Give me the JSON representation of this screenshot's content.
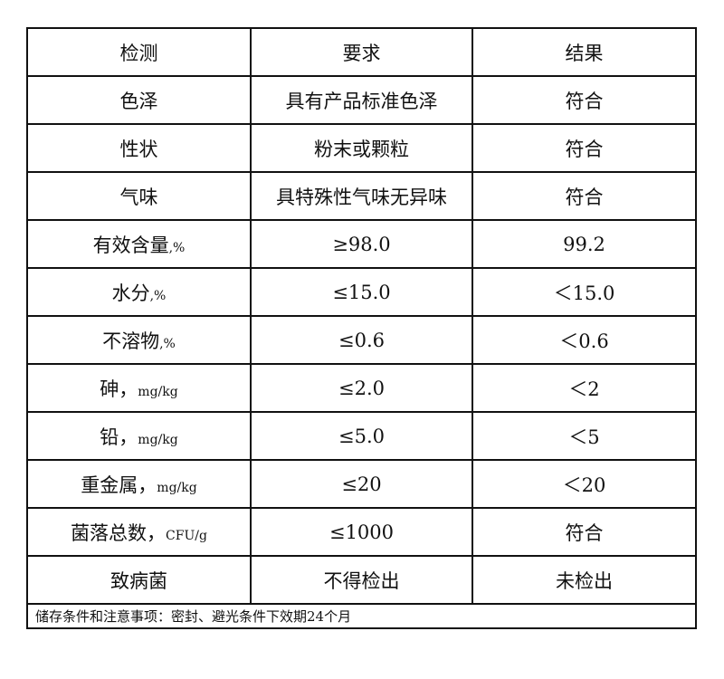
{
  "table": {
    "headers": [
      "检测",
      "要求",
      "结果"
    ],
    "rows": [
      {
        "item": "色泽",
        "unit": "",
        "requirement": "具有产品标准色泽",
        "result": "符合"
      },
      {
        "item": "性状",
        "unit": "",
        "requirement": "粉末或颗粒",
        "result": "符合"
      },
      {
        "item": "气味",
        "unit": "",
        "requirement": "具特殊性气味无异味",
        "result": "符合"
      },
      {
        "item": "有效含量",
        "unit": ",%",
        "requirement": "≥98.0",
        "result": "99.2"
      },
      {
        "item": "水分",
        "unit": ",%",
        "requirement": "≤15.0",
        "result": "＜15.0"
      },
      {
        "item": "不溶物",
        "unit": ",%",
        "requirement": "≤0.6",
        "result": "＜0.6"
      },
      {
        "item": "砷，",
        "unit": "mg/kg",
        "requirement": "≤2.0",
        "result": "＜2"
      },
      {
        "item": "铅，",
        "unit": "mg/kg",
        "requirement": "≤5.0",
        "result": "＜5"
      },
      {
        "item": "重金属，",
        "unit": "mg/kg",
        "requirement": "≤20",
        "result": "＜20"
      },
      {
        "item": "菌落总数，",
        "unit": "CFU/g",
        "requirement": "≤1000",
        "result": "符合"
      },
      {
        "item": "致病菌",
        "unit": "",
        "requirement": "不得检出",
        "result": "未检出"
      }
    ],
    "footer_note": "储存条件和注意事项：密封、避光条件下效期24个月"
  }
}
